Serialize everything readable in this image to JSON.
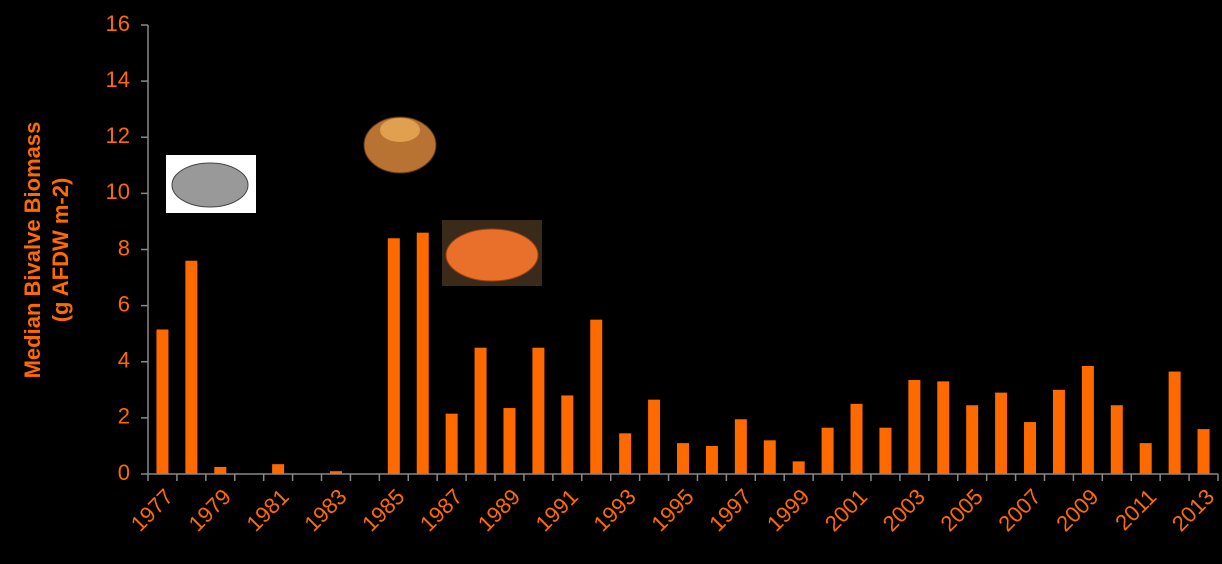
{
  "chart_data": {
    "type": "bar",
    "ylabel": [
      "Median Bivalve Biomass",
      "(g AFDW m-2)"
    ],
    "categories": [
      "1977",
      null,
      "1979",
      null,
      "1981",
      null,
      "1983",
      null,
      "1985",
      null,
      "1987",
      null,
      "1989",
      null,
      "1991",
      null,
      "1993",
      null,
      "1995",
      null,
      "1997",
      null,
      "1999",
      null,
      "2001",
      null,
      "2003",
      null,
      "2005",
      null,
      "2007",
      null,
      "2009",
      null,
      "2011",
      null,
      "2013"
    ],
    "values": [
      5.15,
      7.6,
      0.25,
      0,
      0.35,
      0,
      0.1,
      0,
      8.4,
      8.6,
      2.15,
      4.5,
      2.35,
      4.5,
      2.8,
      5.5,
      1.45,
      2.65,
      1.1,
      1.0,
      1.95,
      1.2,
      0.45,
      1.65,
      2.5,
      1.65,
      3.35,
      3.3,
      2.45,
      2.9,
      1.85,
      3.0,
      3.85,
      2.45,
      1.1,
      3.65,
      1.6
    ],
    "color": "#ff6a00",
    "ylim": [
      0,
      16
    ],
    "yticks": [
      0,
      2,
      4,
      6,
      8,
      10,
      12,
      14,
      16
    ],
    "grid": false
  }
}
